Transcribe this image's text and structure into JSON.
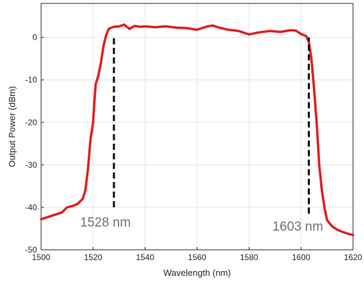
{
  "chart_data": {
    "type": "line",
    "xlabel": "Wavelength (nm)",
    "ylabel": "Output Power (dBm)",
    "xlim": [
      1500,
      1620
    ],
    "ylim": [
      -50,
      8
    ],
    "xticks": [
      1500,
      1520,
      1540,
      1560,
      1580,
      1600,
      1620
    ],
    "yticks": [
      -50,
      -40,
      -30,
      -20,
      -10,
      0
    ],
    "xtick_labels": [
      "1500",
      "1520",
      "1540",
      "1560",
      "1580",
      "1600",
      "1620"
    ],
    "ytick_labels": [
      "-50",
      "-40",
      "-30",
      "-20",
      "-10",
      "0"
    ],
    "grid": true,
    "series": [
      {
        "color": "#e02020",
        "x": [
          1500,
          1504,
          1508,
          1510,
          1512,
          1514,
          1516,
          1517,
          1518,
          1519,
          1520,
          1520.5,
          1521,
          1522,
          1523,
          1524,
          1525,
          1526,
          1527,
          1528,
          1530,
          1532,
          1534,
          1536,
          1538,
          1540,
          1544,
          1548,
          1552,
          1556,
          1560,
          1564,
          1566,
          1568,
          1572,
          1576,
          1580,
          1584,
          1588,
          1592,
          1596,
          1598,
          1600,
          1602,
          1603,
          1604,
          1605,
          1606,
          1607,
          1608,
          1609,
          1610,
          1612,
          1614,
          1616,
          1618,
          1620
        ],
        "y": [
          -42.8,
          -42.0,
          -41.2,
          -40.0,
          -39.7,
          -39.2,
          -38.0,
          -36.0,
          -31.0,
          -24.0,
          -20.0,
          -15.0,
          -11.0,
          -9.0,
          -6.0,
          -2.0,
          0.5,
          2.0,
          2.3,
          2.5,
          2.6,
          3.0,
          2.0,
          2.7,
          2.5,
          2.6,
          2.4,
          2.6,
          2.3,
          2.2,
          1.8,
          2.6,
          2.8,
          2.4,
          1.8,
          1.5,
          0.7,
          1.2,
          1.5,
          1.3,
          1.7,
          1.6,
          0.8,
          0.3,
          -1.0,
          -5.0,
          -12.0,
          -20.0,
          -30.0,
          -36.0,
          -40.0,
          -43.0,
          -44.5,
          -45.3,
          -45.8,
          -46.2,
          -46.5
        ]
      }
    ],
    "annotations": [
      {
        "text": "1528 nm",
        "x": 1528,
        "y_from": -40,
        "y_to": 0.5,
        "label_x": 1515,
        "label_y": -44.5
      },
      {
        "text": "1603 nm",
        "x": 1603,
        "y_from": -41.5,
        "y_to": 0,
        "label_x": 1589,
        "label_y": -45.5
      }
    ],
    "annotation_style": {
      "line_color": "#111111",
      "text_color": "#737373"
    }
  }
}
